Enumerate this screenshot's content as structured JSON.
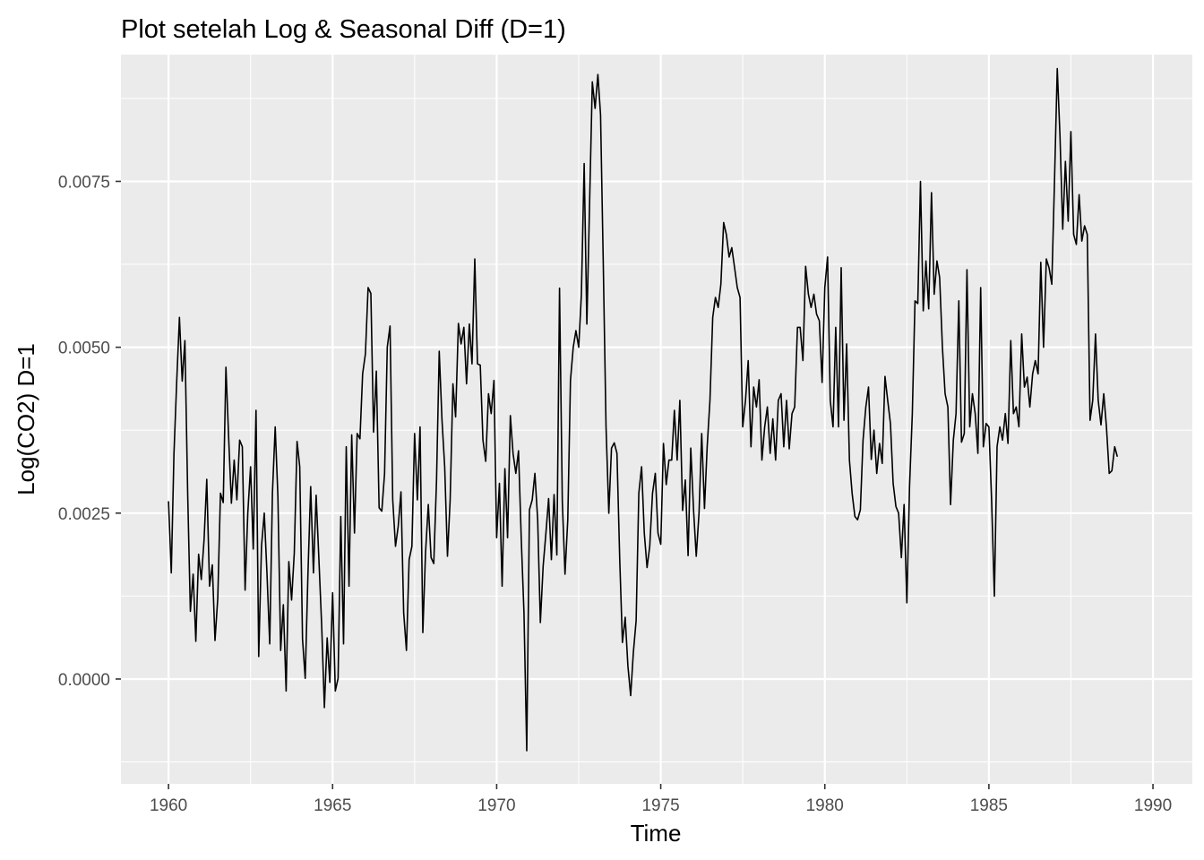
{
  "chart_data": {
    "type": "line",
    "title": "Plot setelah Log & Seasonal Diff (D=1)",
    "xlabel": "Time",
    "ylabel": "Log(CO2) D=1",
    "xlim": [
      1958.55,
      1991.2
    ],
    "ylim": [
      -0.00158,
      0.00941
    ],
    "x_ticks": [
      1960,
      1965,
      1970,
      1975,
      1980,
      1985,
      1990
    ],
    "x_tick_labels": [
      "1960",
      "1965",
      "1970",
      "1975",
      "1980",
      "1985",
      "1990"
    ],
    "y_ticks": [
      0.0,
      0.0025,
      0.005,
      0.0075
    ],
    "y_tick_labels": [
      "0.0000",
      "0.0025",
      "0.0050",
      "0.0075"
    ],
    "grid": true,
    "legend": "none",
    "x_start": 1960.0,
    "x_step": 0.08333,
    "series": [
      {
        "values": [
          0.00268,
          0.0016,
          0.0034,
          0.0045,
          0.00545,
          0.00449,
          0.0051,
          0.0028,
          0.00102,
          0.00158,
          0.00057,
          0.00188,
          0.0015,
          0.0021,
          0.00301,
          0.0014,
          0.00172,
          0.00058,
          0.00122,
          0.0028,
          0.00266,
          0.0047,
          0.00362,
          0.00265,
          0.0033,
          0.0027,
          0.0036,
          0.0035,
          0.00134,
          0.0025,
          0.0032,
          0.00196,
          0.00405,
          0.00034,
          0.002,
          0.0025,
          0.0016,
          0.00053,
          0.0028,
          0.0038,
          0.00276,
          0.00043,
          0.00112,
          -0.00018,
          0.00177,
          0.00119,
          0.0019,
          0.00358,
          0.0032,
          0.0006,
          1e-05,
          0.0016,
          0.0029,
          0.0016,
          0.00277,
          0.0018,
          0.0008,
          -0.00043,
          0.00062,
          -5e-05,
          0.0013,
          -0.00018,
          1e-05,
          0.00245,
          0.00053,
          0.0035,
          0.0014,
          0.00368,
          0.0022,
          0.0037,
          0.00362,
          0.0046,
          0.0049,
          0.0059,
          0.00581,
          0.00372,
          0.00464,
          0.00258,
          0.00253,
          0.0031,
          0.005,
          0.00532,
          0.0027,
          0.002,
          0.0023,
          0.00282,
          0.001,
          0.00043,
          0.0018,
          0.002,
          0.0037,
          0.0027,
          0.0038,
          0.0007,
          0.0019,
          0.00263,
          0.00183,
          0.00174,
          0.003,
          0.00494,
          0.0039,
          0.0032,
          0.00185,
          0.0027,
          0.00445,
          0.00395,
          0.00536,
          0.00505,
          0.0053,
          0.00445,
          0.00535,
          0.00475,
          0.00633,
          0.00475,
          0.00473,
          0.0036,
          0.00328,
          0.0043,
          0.004,
          0.0045,
          0.00213,
          0.00295,
          0.0014,
          0.00317,
          0.00213,
          0.00397,
          0.0034,
          0.0031,
          0.00344,
          0.0021,
          0.001,
          -0.00108,
          0.00255,
          0.0027,
          0.0031,
          0.0024,
          0.00085,
          0.0017,
          0.0022,
          0.00272,
          0.0018,
          0.00278,
          0.00187,
          0.00589,
          0.00268,
          0.00158,
          0.0024,
          0.0045,
          0.005,
          0.00525,
          0.005,
          0.0058,
          0.00777,
          0.00535,
          0.0072,
          0.009,
          0.0086,
          0.00911,
          0.0085,
          0.0062,
          0.0038,
          0.0025,
          0.00348,
          0.00356,
          0.0034,
          0.0018,
          0.00055,
          0.00093,
          0.0002,
          -0.00025,
          0.0004,
          0.00088,
          0.0028,
          0.0032,
          0.0022,
          0.00168,
          0.002,
          0.0028,
          0.0031,
          0.0022,
          0.00203,
          0.00355,
          0.00293,
          0.0033,
          0.0033,
          0.00405,
          0.0033,
          0.0042,
          0.00254,
          0.003,
          0.00186,
          0.00348,
          0.00255,
          0.00185,
          0.0025,
          0.0037,
          0.00257,
          0.0035,
          0.0042,
          0.00545,
          0.00575,
          0.0056,
          0.00595,
          0.00688,
          0.0067,
          0.00636,
          0.0065,
          0.0062,
          0.0059,
          0.00575,
          0.0038,
          0.0042,
          0.0048,
          0.0035,
          0.0044,
          0.0041,
          0.00451,
          0.0033,
          0.0038,
          0.0041,
          0.0034,
          0.00392,
          0.0033,
          0.0042,
          0.0043,
          0.0035,
          0.0042,
          0.00347,
          0.004,
          0.0041,
          0.0053,
          0.0053,
          0.0048,
          0.00622,
          0.0058,
          0.0056,
          0.0058,
          0.0055,
          0.0054,
          0.00447,
          0.0059,
          0.00636,
          0.0042,
          0.0038,
          0.0053,
          0.0038,
          0.0062,
          0.0039,
          0.00505,
          0.0033,
          0.0028,
          0.00245,
          0.0024,
          0.00255,
          0.0036,
          0.0041,
          0.0044,
          0.00331,
          0.00375,
          0.0031,
          0.00355,
          0.00325,
          0.00456,
          0.0042,
          0.00385,
          0.00295,
          0.0026,
          0.0025,
          0.00183,
          0.00263,
          0.00115,
          0.0029,
          0.004,
          0.0057,
          0.00566,
          0.0075,
          0.00555,
          0.0063,
          0.00558,
          0.00733,
          0.0058,
          0.0063,
          0.00605,
          0.005,
          0.0043,
          0.0041,
          0.00263,
          0.0036,
          0.004,
          0.0057,
          0.00357,
          0.0037,
          0.00617,
          0.0038,
          0.0043,
          0.004,
          0.0034,
          0.0059,
          0.0035,
          0.00385,
          0.0038,
          0.0027,
          0.00125,
          0.0035,
          0.0038,
          0.0036,
          0.004,
          0.00355,
          0.0051,
          0.004,
          0.0041,
          0.0038,
          0.0052,
          0.0044,
          0.00455,
          0.0041,
          0.0046,
          0.0048,
          0.0046,
          0.00628,
          0.005,
          0.00633,
          0.0062,
          0.00595,
          0.0075,
          0.0092,
          0.0082,
          0.00678,
          0.0078,
          0.0069,
          0.00825,
          0.0067,
          0.00655,
          0.0073,
          0.0066,
          0.00683,
          0.0067,
          0.0039,
          0.0042,
          0.0052,
          0.0042,
          0.00383,
          0.0043,
          0.0038,
          0.0031,
          0.00314,
          0.0035,
          0.00335
        ]
      }
    ]
  }
}
